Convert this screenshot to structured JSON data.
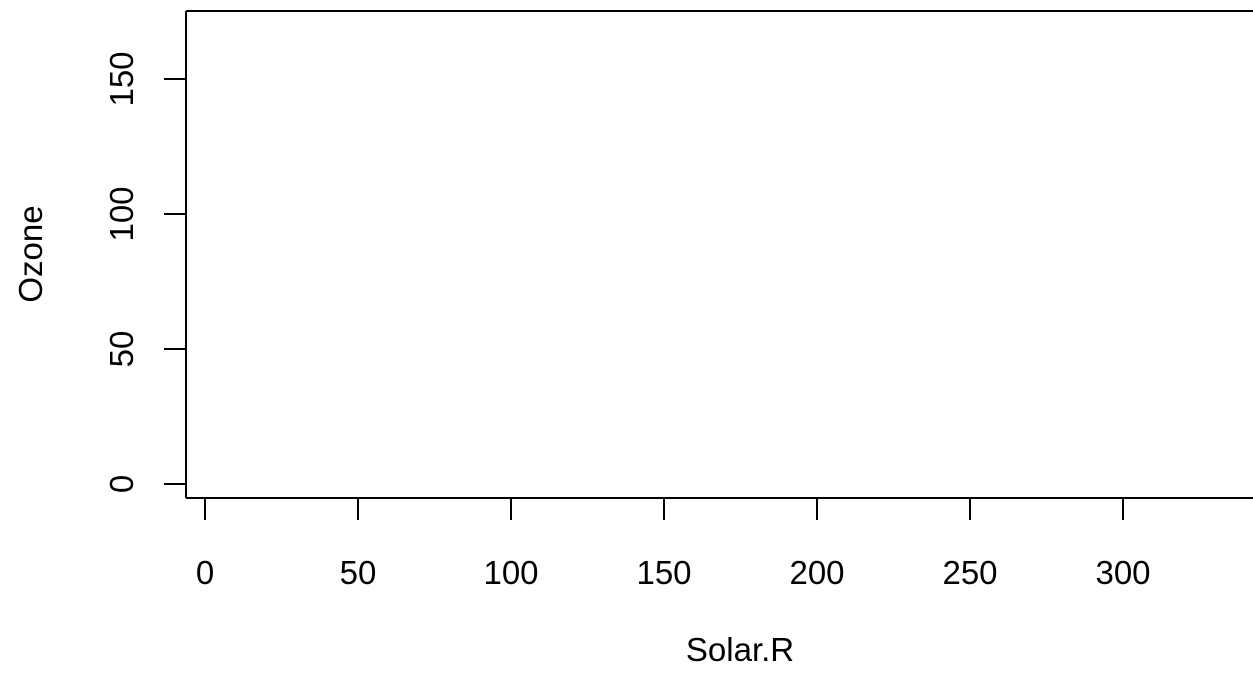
{
  "chart_data": {
    "type": "scatter",
    "title": "",
    "xlabel": "Solar.R",
    "ylabel": "Ozone",
    "xlim": [
      -5,
      345
    ],
    "ylim": [
      -5,
      173
    ],
    "x_ticks": [
      0,
      50,
      100,
      150,
      200,
      250,
      300
    ],
    "x_tick_labels": [
      "0",
      "50",
      "100",
      "150",
      "200",
      "250",
      "300"
    ],
    "y_ticks": [
      0,
      50,
      100,
      150
    ],
    "y_tick_labels": [
      "0",
      "50",
      "100",
      "150"
    ],
    "grid": false,
    "legend": "none",
    "series": [
      {
        "x": [],
        "y": []
      }
    ]
  }
}
